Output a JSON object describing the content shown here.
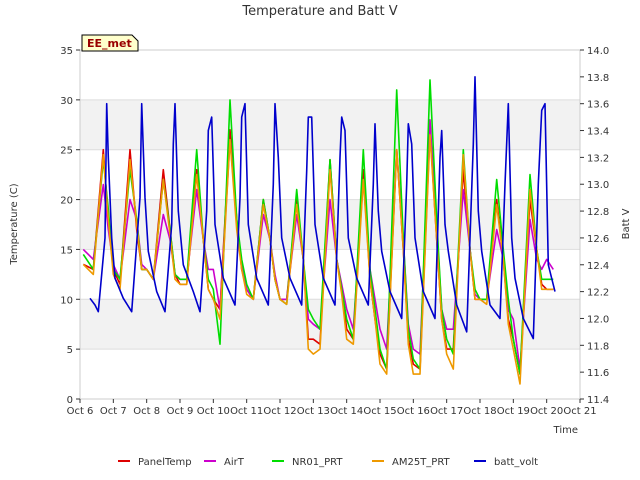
{
  "chart_data": {
    "type": "line",
    "title": "Temperature and Batt V",
    "xlabel": "Time",
    "ylabel": "Temperature (C)",
    "y2label": "Batt V",
    "station_label": "EE_met",
    "ylim": [
      0,
      35
    ],
    "y2lim": [
      11.4,
      14.0
    ],
    "xlim": [
      6,
      21
    ],
    "x_ticks": [
      6,
      7,
      8,
      9,
      10,
      11,
      12,
      13,
      14,
      15,
      16,
      17,
      18,
      19,
      20,
      21
    ],
    "x_tick_labels": [
      "Oct 6",
      "Oct 7",
      "Oct 8",
      "Oct 9",
      "Oct 10",
      "Oct 11",
      "Oct 12",
      "Oct 13",
      "Oct 14",
      "Oct 15",
      "Oct 16",
      "Oct 17",
      "Oct 18",
      "Oct 19",
      "Oct 20",
      "Oct 21"
    ],
    "y_ticks": [
      0,
      5,
      10,
      15,
      20,
      25,
      30,
      35
    ],
    "y2_ticks": [
      11.4,
      11.6,
      11.8,
      12.0,
      12.2,
      12.4,
      12.6,
      12.8,
      13.0,
      13.2,
      13.4,
      13.6,
      13.8,
      14.0
    ],
    "grid": "horizontal bands",
    "legend_position": "bottom",
    "series": [
      {
        "name": "PanelTemp",
        "color": "#dd0000",
        "axis": "left",
        "x": [
          6.1,
          6.4,
          6.7,
          6.85,
          7.0,
          7.2,
          7.5,
          7.7,
          7.85,
          8.0,
          8.2,
          8.5,
          8.7,
          8.85,
          9.0,
          9.2,
          9.5,
          9.7,
          9.85,
          10.0,
          10.2,
          10.5,
          10.7,
          10.85,
          11.0,
          11.2,
          11.5,
          11.7,
          11.85,
          12.0,
          12.2,
          12.5,
          12.7,
          12.85,
          13.0,
          13.2,
          13.5,
          13.7,
          13.85,
          14.0,
          14.2,
          14.5,
          14.7,
          14.85,
          15.0,
          15.2,
          15.5,
          15.7,
          15.85,
          16.0,
          16.2,
          16.5,
          16.7,
          16.85,
          17.0,
          17.2,
          17.5,
          17.7,
          17.85,
          18.0,
          18.2,
          18.5,
          18.7,
          18.85,
          19.0,
          19.2,
          19.5,
          19.7,
          19.85,
          20.0,
          20.2
        ],
        "values": [
          13.5,
          13,
          25,
          18,
          13,
          11.5,
          25,
          17,
          13,
          13,
          12,
          23,
          17,
          12.5,
          11.5,
          11.5,
          23,
          16,
          11,
          10,
          9,
          27,
          18,
          13,
          11,
          10,
          20,
          16,
          12,
          10,
          10,
          20,
          14,
          6,
          6,
          5.5,
          24,
          14,
          11,
          7,
          6,
          23,
          12,
          8,
          4.5,
          3,
          25,
          15,
          6,
          3.5,
          3,
          27,
          16,
          8,
          5,
          5,
          23,
          15,
          10,
          10,
          10,
          20,
          14,
          8,
          6,
          2.5,
          20,
          15,
          11.5,
          11,
          11
        ]
      },
      {
        "name": "AirT",
        "color": "#cc00cc",
        "axis": "left",
        "x": [
          6.1,
          6.4,
          6.7,
          6.85,
          7.0,
          7.2,
          7.5,
          7.7,
          7.85,
          8.0,
          8.2,
          8.5,
          8.7,
          8.85,
          9.0,
          9.2,
          9.5,
          9.7,
          9.85,
          10.0,
          10.2,
          10.5,
          10.7,
          10.85,
          11.0,
          11.2,
          11.5,
          11.7,
          11.85,
          12.0,
          12.2,
          12.5,
          12.7,
          12.85,
          13.0,
          13.2,
          13.5,
          13.7,
          13.85,
          14.0,
          14.2,
          14.5,
          14.7,
          14.85,
          15.0,
          15.2,
          15.5,
          15.7,
          15.85,
          16.0,
          16.2,
          16.5,
          16.7,
          16.85,
          17.0,
          17.2,
          17.5,
          17.7,
          17.85,
          18.0,
          18.2,
          18.5,
          18.7,
          18.85,
          19.0,
          19.2,
          19.5,
          19.7,
          19.85,
          20.0,
          20.2
        ],
        "values": [
          15,
          14,
          21.5,
          17,
          13.5,
          12,
          20,
          18,
          13.5,
          13,
          12,
          18.5,
          16,
          12.5,
          12,
          12,
          21,
          16,
          13,
          13,
          9,
          26,
          18,
          13.5,
          11,
          10,
          18.5,
          16,
          12.5,
          10,
          10,
          18.5,
          14,
          8,
          7.5,
          7,
          20,
          14,
          11.5,
          9,
          7,
          22,
          13,
          10,
          7,
          5,
          25,
          16,
          7.5,
          5,
          4.5,
          28,
          17,
          9,
          7,
          7,
          21,
          15,
          10.5,
          10,
          10,
          17,
          14,
          9,
          8,
          3,
          18,
          14,
          13,
          14,
          13
        ]
      },
      {
        "name": "NR01_PRT",
        "color": "#00dd00",
        "axis": "left",
        "x": [
          6.1,
          6.4,
          6.7,
          6.85,
          7.0,
          7.2,
          7.5,
          7.7,
          7.85,
          8.0,
          8.2,
          8.5,
          8.7,
          8.85,
          9.0,
          9.2,
          9.5,
          9.7,
          9.85,
          10.0,
          10.2,
          10.5,
          10.7,
          10.85,
          11.0,
          11.2,
          11.5,
          11.7,
          11.85,
          12.0,
          12.2,
          12.5,
          12.7,
          12.85,
          13.0,
          13.2,
          13.5,
          13.7,
          13.85,
          14.0,
          14.2,
          14.5,
          14.7,
          14.85,
          15.0,
          15.2,
          15.5,
          15.7,
          15.85,
          16.0,
          16.2,
          16.5,
          16.7,
          16.85,
          17.0,
          17.2,
          17.5,
          17.7,
          17.85,
          18.0,
          18.2,
          18.5,
          18.7,
          18.85,
          19.0,
          19.2,
          19.5,
          19.7,
          19.85,
          20.0,
          20.2
        ],
        "values": [
          14.5,
          13,
          24,
          19,
          13,
          12,
          23,
          18,
          13,
          13,
          12,
          22,
          17,
          12.5,
          12,
          12,
          25,
          16,
          12,
          11,
          5.5,
          30,
          18,
          14,
          11.5,
          10,
          20,
          16,
          12,
          10,
          9.5,
          21,
          14,
          9,
          8,
          7,
          24,
          14,
          11,
          8,
          6,
          25,
          13,
          9,
          5,
          3,
          31,
          16,
          7,
          4,
          3,
          32,
          18,
          9,
          6,
          4.5,
          25,
          15,
          11,
          10,
          10,
          22,
          15,
          10,
          6,
          2.5,
          22.5,
          15,
          12,
          12,
          12
        ]
      },
      {
        "name": "AM25T_PRT",
        "color": "#ee9900",
        "axis": "left",
        "x": [
          6.1,
          6.4,
          6.7,
          6.85,
          7.0,
          7.2,
          7.5,
          7.7,
          7.85,
          8.0,
          8.2,
          8.5,
          8.7,
          8.85,
          9.0,
          9.2,
          9.5,
          9.7,
          9.85,
          10.0,
          10.2,
          10.5,
          10.7,
          10.85,
          11.0,
          11.2,
          11.5,
          11.7,
          11.85,
          12.0,
          12.2,
          12.5,
          12.7,
          12.85,
          13.0,
          13.2,
          13.5,
          13.7,
          13.85,
          14.0,
          14.2,
          14.5,
          14.7,
          14.85,
          15.0,
          15.2,
          15.5,
          15.7,
          15.85,
          16.0,
          16.2,
          16.5,
          16.7,
          16.85,
          17.0,
          17.2,
          17.5,
          17.7,
          17.85,
          18.0,
          18.2,
          18.5,
          18.7,
          18.85,
          19.0,
          19.2,
          19.5,
          19.7,
          19.85,
          20.0,
          20.2
        ],
        "values": [
          13.5,
          12.5,
          24.5,
          18,
          12.5,
          11,
          24,
          17.5,
          13,
          13,
          12,
          22,
          16.5,
          12,
          11.5,
          11.5,
          22.5,
          16,
          11,
          10,
          8,
          26,
          17,
          13,
          10.5,
          10,
          19.5,
          16,
          12,
          10,
          9.5,
          19.5,
          14,
          5,
          4.5,
          5,
          23,
          14,
          10.5,
          6,
          5.5,
          22,
          12,
          8,
          3.5,
          2.5,
          25,
          15,
          5.5,
          2.5,
          2.5,
          26.5,
          16,
          8,
          4.5,
          3,
          24.5,
          15,
          10,
          10,
          9.5,
          19.5,
          14,
          7.5,
          5,
          1.5,
          21,
          15,
          11,
          11,
          11
        ]
      },
      {
        "name": "batt_volt",
        "color": "#0000cc",
        "axis": "right",
        "x": [
          6.3,
          6.45,
          6.55,
          6.75,
          6.8,
          6.85,
          6.95,
          7.05,
          7.3,
          7.55,
          7.8,
          7.85,
          7.95,
          8.05,
          8.3,
          8.55,
          8.75,
          8.8,
          8.85,
          8.95,
          9.1,
          9.4,
          9.6,
          9.8,
          9.85,
          9.95,
          10.05,
          10.3,
          10.65,
          10.8,
          10.85,
          10.95,
          11.05,
          11.3,
          11.65,
          11.8,
          11.85,
          11.95,
          12.05,
          12.3,
          12.65,
          12.8,
          12.85,
          12.95,
          13.05,
          13.3,
          13.65,
          13.8,
          13.85,
          13.95,
          14.05,
          14.3,
          14.65,
          14.8,
          14.85,
          14.95,
          15.05,
          15.3,
          15.65,
          15.8,
          15.85,
          15.95,
          16.05,
          16.3,
          16.65,
          16.8,
          16.85,
          16.95,
          17.05,
          17.3,
          17.6,
          17.8,
          17.85,
          17.95,
          18.05,
          18.3,
          18.6,
          18.75,
          18.85,
          18.95,
          19.05,
          19.3,
          19.6,
          19.75,
          19.85,
          19.95,
          20.05,
          20.25
        ],
        "values": [
          12.15,
          12.1,
          12.05,
          12.6,
          13.6,
          13.2,
          12.6,
          12.3,
          12.15,
          12.05,
          12.9,
          13.6,
          12.9,
          12.5,
          12.2,
          12.05,
          12.7,
          13.3,
          13.6,
          12.8,
          12.4,
          12.2,
          12.05,
          12.8,
          13.4,
          13.5,
          12.7,
          12.3,
          12.1,
          12.9,
          13.5,
          13.6,
          12.7,
          12.3,
          12.1,
          13.0,
          13.6,
          13.2,
          12.6,
          12.3,
          12.1,
          13.1,
          13.5,
          13.5,
          12.7,
          12.3,
          12.1,
          13.2,
          13.5,
          13.4,
          12.6,
          12.3,
          12.1,
          13.0,
          13.45,
          12.8,
          12.5,
          12.2,
          12.0,
          13.0,
          13.45,
          13.3,
          12.6,
          12.2,
          12.0,
          13.2,
          13.4,
          12.7,
          12.5,
          12.1,
          11.9,
          13.3,
          13.8,
          12.8,
          12.5,
          12.1,
          12.0,
          13.0,
          13.6,
          12.6,
          12.3,
          12.0,
          11.85,
          13.0,
          13.55,
          13.6,
          12.4,
          12.2
        ]
      }
    ]
  }
}
